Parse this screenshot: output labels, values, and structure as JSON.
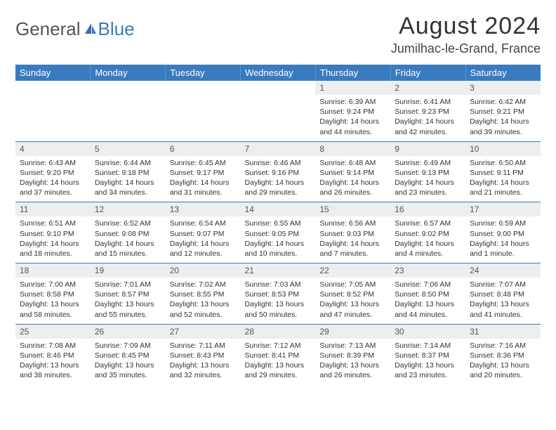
{
  "logo": {
    "part1": "General",
    "part2": "Blue"
  },
  "title": "August 2024",
  "subtitle": "Jumilhac-le-Grand, France",
  "colors": {
    "header_bg": "#3a7bbf",
    "header_fg": "#ffffff",
    "daynum_bg": "#eceef0",
    "rule": "#3a7bbf",
    "text": "#333333",
    "logo_blue": "#3a7bbf"
  },
  "dayHeaders": [
    "Sunday",
    "Monday",
    "Tuesday",
    "Wednesday",
    "Thursday",
    "Friday",
    "Saturday"
  ],
  "weeks": [
    [
      null,
      null,
      null,
      null,
      {
        "n": "1",
        "sr": "Sunrise: 6:39 AM",
        "ss": "Sunset: 9:24 PM",
        "d1": "Daylight: 14 hours",
        "d2": "and 44 minutes."
      },
      {
        "n": "2",
        "sr": "Sunrise: 6:41 AM",
        "ss": "Sunset: 9:23 PM",
        "d1": "Daylight: 14 hours",
        "d2": "and 42 minutes."
      },
      {
        "n": "3",
        "sr": "Sunrise: 6:42 AM",
        "ss": "Sunset: 9:21 PM",
        "d1": "Daylight: 14 hours",
        "d2": "and 39 minutes."
      }
    ],
    [
      {
        "n": "4",
        "sr": "Sunrise: 6:43 AM",
        "ss": "Sunset: 9:20 PM",
        "d1": "Daylight: 14 hours",
        "d2": "and 37 minutes."
      },
      {
        "n": "5",
        "sr": "Sunrise: 6:44 AM",
        "ss": "Sunset: 9:18 PM",
        "d1": "Daylight: 14 hours",
        "d2": "and 34 minutes."
      },
      {
        "n": "6",
        "sr": "Sunrise: 6:45 AM",
        "ss": "Sunset: 9:17 PM",
        "d1": "Daylight: 14 hours",
        "d2": "and 31 minutes."
      },
      {
        "n": "7",
        "sr": "Sunrise: 6:46 AM",
        "ss": "Sunset: 9:16 PM",
        "d1": "Daylight: 14 hours",
        "d2": "and 29 minutes."
      },
      {
        "n": "8",
        "sr": "Sunrise: 6:48 AM",
        "ss": "Sunset: 9:14 PM",
        "d1": "Daylight: 14 hours",
        "d2": "and 26 minutes."
      },
      {
        "n": "9",
        "sr": "Sunrise: 6:49 AM",
        "ss": "Sunset: 9:13 PM",
        "d1": "Daylight: 14 hours",
        "d2": "and 23 minutes."
      },
      {
        "n": "10",
        "sr": "Sunrise: 6:50 AM",
        "ss": "Sunset: 9:11 PM",
        "d1": "Daylight: 14 hours",
        "d2": "and 21 minutes."
      }
    ],
    [
      {
        "n": "11",
        "sr": "Sunrise: 6:51 AM",
        "ss": "Sunset: 9:10 PM",
        "d1": "Daylight: 14 hours",
        "d2": "and 18 minutes."
      },
      {
        "n": "12",
        "sr": "Sunrise: 6:52 AM",
        "ss": "Sunset: 9:08 PM",
        "d1": "Daylight: 14 hours",
        "d2": "and 15 minutes."
      },
      {
        "n": "13",
        "sr": "Sunrise: 6:54 AM",
        "ss": "Sunset: 9:07 PM",
        "d1": "Daylight: 14 hours",
        "d2": "and 12 minutes."
      },
      {
        "n": "14",
        "sr": "Sunrise: 6:55 AM",
        "ss": "Sunset: 9:05 PM",
        "d1": "Daylight: 14 hours",
        "d2": "and 10 minutes."
      },
      {
        "n": "15",
        "sr": "Sunrise: 6:56 AM",
        "ss": "Sunset: 9:03 PM",
        "d1": "Daylight: 14 hours",
        "d2": "and 7 minutes."
      },
      {
        "n": "16",
        "sr": "Sunrise: 6:57 AM",
        "ss": "Sunset: 9:02 PM",
        "d1": "Daylight: 14 hours",
        "d2": "and 4 minutes."
      },
      {
        "n": "17",
        "sr": "Sunrise: 6:59 AM",
        "ss": "Sunset: 9:00 PM",
        "d1": "Daylight: 14 hours",
        "d2": "and 1 minute."
      }
    ],
    [
      {
        "n": "18",
        "sr": "Sunrise: 7:00 AM",
        "ss": "Sunset: 8:58 PM",
        "d1": "Daylight: 13 hours",
        "d2": "and 58 minutes."
      },
      {
        "n": "19",
        "sr": "Sunrise: 7:01 AM",
        "ss": "Sunset: 8:57 PM",
        "d1": "Daylight: 13 hours",
        "d2": "and 55 minutes."
      },
      {
        "n": "20",
        "sr": "Sunrise: 7:02 AM",
        "ss": "Sunset: 8:55 PM",
        "d1": "Daylight: 13 hours",
        "d2": "and 52 minutes."
      },
      {
        "n": "21",
        "sr": "Sunrise: 7:03 AM",
        "ss": "Sunset: 8:53 PM",
        "d1": "Daylight: 13 hours",
        "d2": "and 50 minutes."
      },
      {
        "n": "22",
        "sr": "Sunrise: 7:05 AM",
        "ss": "Sunset: 8:52 PM",
        "d1": "Daylight: 13 hours",
        "d2": "and 47 minutes."
      },
      {
        "n": "23",
        "sr": "Sunrise: 7:06 AM",
        "ss": "Sunset: 8:50 PM",
        "d1": "Daylight: 13 hours",
        "d2": "and 44 minutes."
      },
      {
        "n": "24",
        "sr": "Sunrise: 7:07 AM",
        "ss": "Sunset: 8:48 PM",
        "d1": "Daylight: 13 hours",
        "d2": "and 41 minutes."
      }
    ],
    [
      {
        "n": "25",
        "sr": "Sunrise: 7:08 AM",
        "ss": "Sunset: 8:46 PM",
        "d1": "Daylight: 13 hours",
        "d2": "and 38 minutes."
      },
      {
        "n": "26",
        "sr": "Sunrise: 7:09 AM",
        "ss": "Sunset: 8:45 PM",
        "d1": "Daylight: 13 hours",
        "d2": "and 35 minutes."
      },
      {
        "n": "27",
        "sr": "Sunrise: 7:11 AM",
        "ss": "Sunset: 8:43 PM",
        "d1": "Daylight: 13 hours",
        "d2": "and 32 minutes."
      },
      {
        "n": "28",
        "sr": "Sunrise: 7:12 AM",
        "ss": "Sunset: 8:41 PM",
        "d1": "Daylight: 13 hours",
        "d2": "and 29 minutes."
      },
      {
        "n": "29",
        "sr": "Sunrise: 7:13 AM",
        "ss": "Sunset: 8:39 PM",
        "d1": "Daylight: 13 hours",
        "d2": "and 26 minutes."
      },
      {
        "n": "30",
        "sr": "Sunrise: 7:14 AM",
        "ss": "Sunset: 8:37 PM",
        "d1": "Daylight: 13 hours",
        "d2": "and 23 minutes."
      },
      {
        "n": "31",
        "sr": "Sunrise: 7:16 AM",
        "ss": "Sunset: 8:36 PM",
        "d1": "Daylight: 13 hours",
        "d2": "and 20 minutes."
      }
    ]
  ]
}
